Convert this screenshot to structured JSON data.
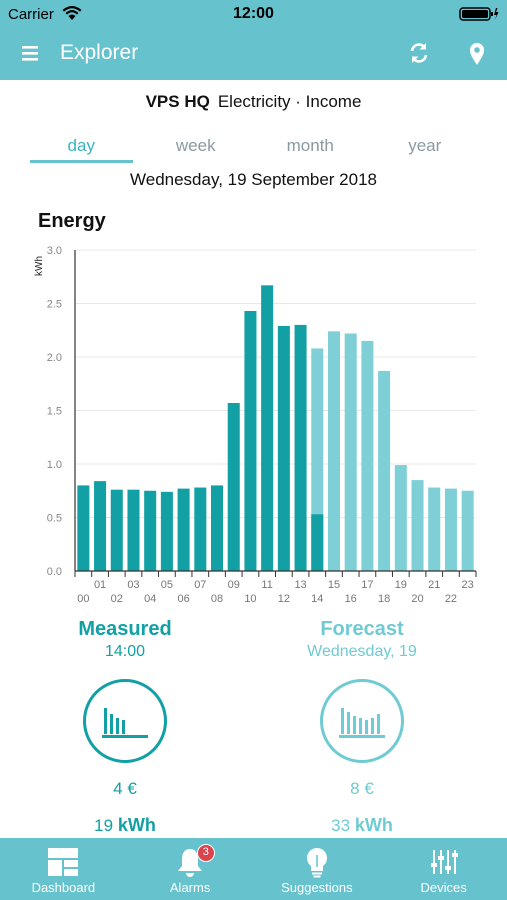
{
  "status_bar": {
    "carrier": "Carrier",
    "time": "12:00"
  },
  "nav": {
    "title": "Explorer",
    "menu_icon": "hamburger-icon",
    "refresh_icon": "refresh-icon",
    "location_icon": "map-pin-icon"
  },
  "context": {
    "site": "VPS HQ",
    "detail": "Electricity · Income"
  },
  "tabs": [
    {
      "label": "day",
      "active": true
    },
    {
      "label": "week",
      "active": false
    },
    {
      "label": "month",
      "active": false
    },
    {
      "label": "year",
      "active": false
    }
  ],
  "date_label": "Wednesday, 19 September 2018",
  "energy_title": "Energy",
  "colors": {
    "header": "#66c2cc",
    "measured": "#12a0a5",
    "forecast": "#7fd0d6"
  },
  "chart_data": {
    "type": "bar",
    "ylabel": "kWh",
    "ylim": [
      0,
      3.0
    ],
    "yticks": [
      "0.0",
      "0.5",
      "1.0",
      "1.5",
      "2.0",
      "2.5",
      "3.0"
    ],
    "categories": [
      "00",
      "01",
      "02",
      "03",
      "04",
      "05",
      "06",
      "07",
      "08",
      "09",
      "10",
      "11",
      "12",
      "13",
      "14",
      "15",
      "16",
      "17",
      "18",
      "19",
      "20",
      "21",
      "22",
      "23"
    ],
    "series": [
      {
        "name": "Measured",
        "values": [
          0.8,
          0.84,
          0.76,
          0.76,
          0.75,
          0.74,
          0.77,
          0.78,
          0.8,
          1.57,
          2.43,
          2.67,
          2.29,
          2.3,
          0.53,
          null,
          null,
          null,
          null,
          null,
          null,
          null,
          null,
          null
        ]
      },
      {
        "name": "Forecast",
        "values": [
          null,
          null,
          null,
          null,
          null,
          null,
          null,
          null,
          null,
          null,
          null,
          null,
          null,
          null,
          2.08,
          2.24,
          2.22,
          2.15,
          1.87,
          0.99,
          0.85,
          0.78,
          0.77,
          0.75
        ]
      }
    ],
    "grid": true,
    "legend": "none"
  },
  "measured": {
    "title": "Measured",
    "subtitle": "14:00",
    "cost": "4 €",
    "energy_value": "19",
    "energy_unit": "kWh"
  },
  "forecast": {
    "title": "Forecast",
    "subtitle": "Wednesday, 19",
    "cost": "8 €",
    "energy_value": "33",
    "energy_unit": "kWh"
  },
  "tab_bar": [
    {
      "label": "Dashboard",
      "icon": "dashboard-icon"
    },
    {
      "label": "Alarms",
      "icon": "bell-icon",
      "badge": "3"
    },
    {
      "label": "Suggestions",
      "icon": "lightbulb-icon"
    },
    {
      "label": "Devices",
      "icon": "sliders-icon"
    }
  ]
}
